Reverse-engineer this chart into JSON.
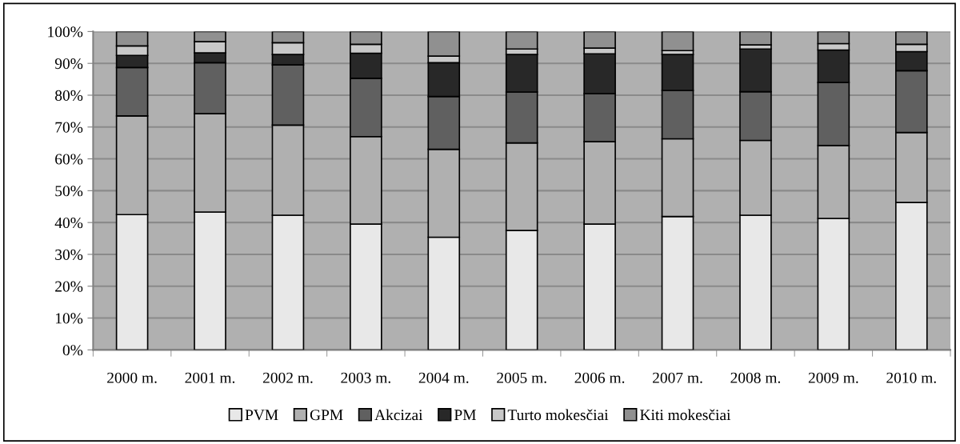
{
  "chart_data": {
    "type": "bar",
    "stacked": true,
    "categories": [
      "2000 m.",
      "2001 m.",
      "2002 m.",
      "2003 m.",
      "2004 m.",
      "2005 m.",
      "2006 m.",
      "2007 m.",
      "2008 m.",
      "2009 m.",
      "2010 m."
    ],
    "series": [
      {
        "name": "PVM",
        "color": "#e8e8e8",
        "values": [
          42.5,
          43.3,
          42.3,
          39.5,
          35.4,
          37.5,
          39.5,
          41.9,
          42.3,
          41.3,
          46.3
        ]
      },
      {
        "name": "GPM",
        "color": "#b0b0b0",
        "values": [
          31,
          30.9,
          28.3,
          27.5,
          27.6,
          27.5,
          25.9,
          24.4,
          23.5,
          22.9,
          22
        ]
      },
      {
        "name": "Akcizai",
        "color": "#606060",
        "values": [
          15.2,
          16,
          18.9,
          18.3,
          16.6,
          16,
          15.1,
          15.2,
          15.3,
          19.8,
          19.4
        ]
      },
      {
        "name": "PM",
        "color": "#282828",
        "values": [
          3.8,
          3.1,
          3.3,
          7.9,
          10.6,
          11.8,
          12.5,
          11.3,
          13.4,
          10.2,
          6
        ]
      },
      {
        "name": "Turto mokesčiai",
        "color": "#c8c8c8",
        "values": [
          3,
          3.5,
          3.7,
          2.8,
          2.1,
          1.7,
          1.8,
          1.2,
          1.3,
          2,
          2.3
        ]
      },
      {
        "name": "Kiti mokesčiai",
        "color": "#909090",
        "values": [
          4.5,
          3.2,
          3.5,
          4,
          7.7,
          5.5,
          5.2,
          6,
          4.2,
          3.8,
          4
        ]
      }
    ],
    "ylim": [
      0,
      100
    ],
    "yticks": [
      {
        "value": 0,
        "label": "0%"
      },
      {
        "value": 10,
        "label": "10%"
      },
      {
        "value": 20,
        "label": "20%"
      },
      {
        "value": 30,
        "label": "30%"
      },
      {
        "value": 40,
        "label": "40%"
      },
      {
        "value": 50,
        "label": "50%"
      },
      {
        "value": 60,
        "label": "60%"
      },
      {
        "value": 70,
        "label": "70%"
      },
      {
        "value": 80,
        "label": "80%"
      },
      {
        "value": 90,
        "label": "90%"
      },
      {
        "value": 100,
        "label": "100%"
      }
    ],
    "grid": "y",
    "legend": "bottom"
  }
}
